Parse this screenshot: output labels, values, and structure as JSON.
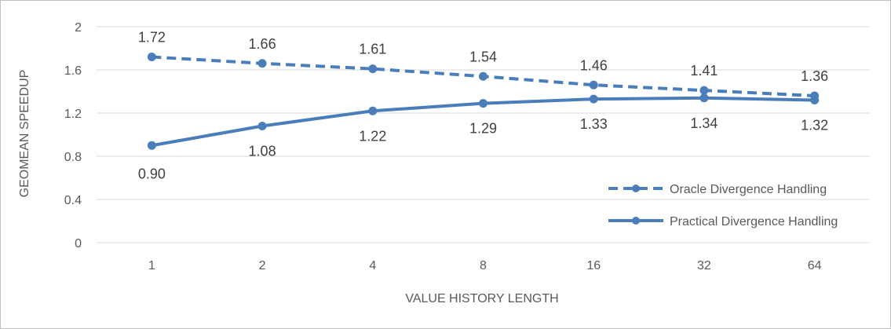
{
  "chart_data": {
    "type": "line",
    "title": "",
    "xlabel": "VALUE HISTORY LENGTH",
    "ylabel": "GEOMEAN SPEEDUP",
    "categories": [
      "1",
      "2",
      "4",
      "8",
      "16",
      "32",
      "64"
    ],
    "ylim": [
      0,
      2
    ],
    "yticks": [
      "0",
      "0.4",
      "0.8",
      "1.2",
      "1.6",
      "2"
    ],
    "grid": true,
    "legend_position": "bottom-right",
    "series": [
      {
        "name": "Oracle Divergence Handling",
        "values": [
          1.72,
          1.66,
          1.61,
          1.54,
          1.46,
          1.41,
          1.36
        ],
        "labels": [
          "1.72",
          "1.66",
          "1.61",
          "1.54",
          "1.46",
          "1.41",
          "1.36"
        ],
        "line_style": "dashed",
        "color": "#4a7ebb"
      },
      {
        "name": "Practical Divergence Handling",
        "values": [
          0.9,
          1.08,
          1.22,
          1.29,
          1.33,
          1.34,
          1.32
        ],
        "labels": [
          "0.90",
          "1.08",
          "1.22",
          "1.29",
          "1.33",
          "1.34",
          "1.32"
        ],
        "line_style": "solid",
        "color": "#4a7ebb"
      }
    ]
  }
}
